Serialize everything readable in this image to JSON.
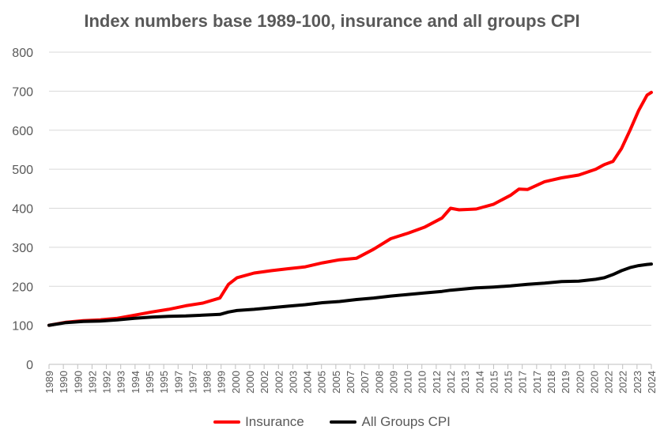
{
  "chart_data": {
    "type": "line",
    "title": "Index numbers base 1989-100, insurance and all groups CPI",
    "xlabel": "",
    "ylabel": "",
    "ylim": [
      0,
      800
    ],
    "yticks": [
      0,
      100,
      200,
      300,
      400,
      500,
      600,
      700,
      800
    ],
    "grid": true,
    "legend_position": "bottom",
    "x_tick_labels": [
      "1989",
      "1990",
      "1990",
      "1992",
      "1992",
      "1993",
      "1994",
      "1995",
      "1995",
      "1997",
      "1997",
      "1998",
      "1999",
      "2000",
      "2000",
      "2002",
      "2002",
      "2003",
      "2004",
      "2005",
      "2005",
      "2007",
      "2007",
      "2008",
      "2009",
      "2010",
      "2010",
      "2012",
      "2012",
      "2013",
      "2014",
      "2015",
      "2015",
      "2017",
      "2017",
      "2018",
      "2019",
      "2020",
      "2020",
      "2022",
      "2022",
      "2023",
      "2024"
    ],
    "x": [
      1989,
      1990,
      1991,
      1992,
      1993,
      1994,
      1995,
      1996,
      1997,
      1998,
      1999,
      1999.5,
      2000,
      2001,
      2002,
      2003,
      2004,
      2005,
      2006,
      2007,
      2008,
      2009,
      2010,
      2011,
      2012,
      2012.5,
      2013,
      2014,
      2015,
      2016,
      2016.5,
      2017,
      2018,
      2019,
      2020,
      2021,
      2021.5,
      2022,
      2022.5,
      2023,
      2023.5,
      2024,
      2024.25
    ],
    "series": [
      {
        "name": "Insurance",
        "color": "#ff0000",
        "values": [
          100,
          108,
          112,
          114,
          118,
          126,
          134,
          141,
          150,
          157,
          170,
          205,
          222,
          234,
          240,
          245,
          250,
          260,
          268,
          272,
          295,
          322,
          336,
          352,
          375,
          400,
          396,
          398,
          410,
          433,
          449,
          448,
          468,
          478,
          485,
          500,
          512,
          520,
          553,
          600,
          650,
          690,
          697
        ]
      },
      {
        "name": "All Groups CPI",
        "color": "#000000",
        "values": [
          100,
          107,
          110,
          111,
          114,
          118,
          121,
          123,
          124,
          126,
          128,
          134,
          138,
          141,
          145,
          149,
          153,
          158,
          161,
          166,
          170,
          175,
          179,
          183,
          187,
          190,
          192,
          196,
          198,
          201,
          203,
          205,
          208,
          212,
          213,
          218,
          222,
          230,
          240,
          248,
          253,
          256,
          257
        ]
      }
    ]
  }
}
